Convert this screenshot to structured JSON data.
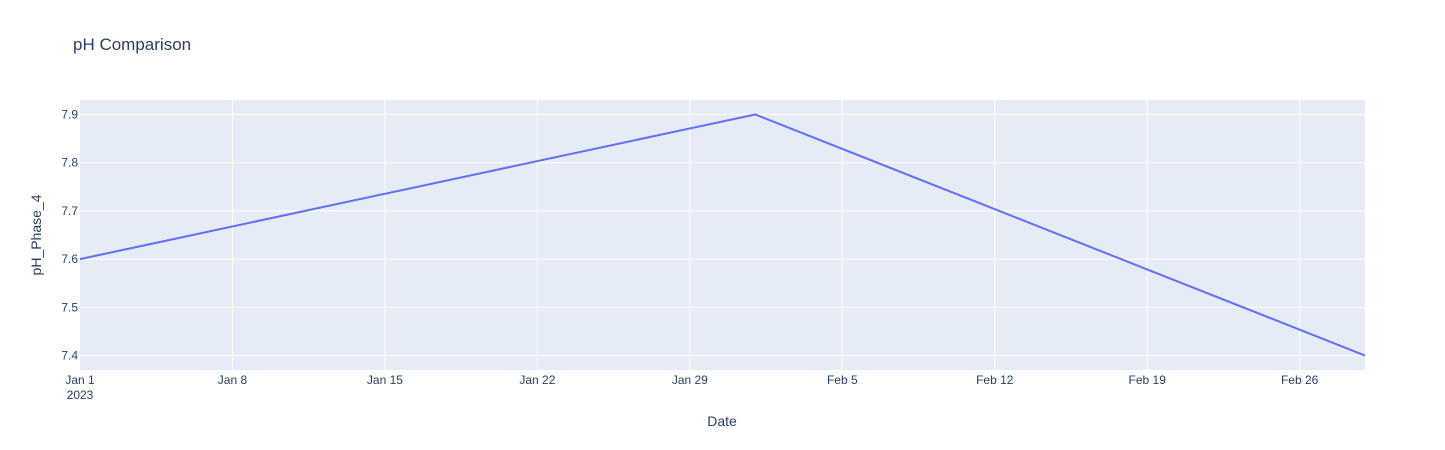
{
  "chart_data": {
    "type": "line",
    "title": "pH Comparison",
    "xlabel": "Date",
    "ylabel": "pH_Phase_4",
    "x_ticks": [
      "Jan 1",
      "Jan 8",
      "Jan 15",
      "Jan 22",
      "Jan 29",
      "Feb 5",
      "Feb 12",
      "Feb 19",
      "Feb 26"
    ],
    "x_tick_dates": [
      "2023-01-01",
      "2023-01-08",
      "2023-01-15",
      "2023-01-22",
      "2023-01-29",
      "2023-02-05",
      "2023-02-12",
      "2023-02-19",
      "2023-02-26"
    ],
    "x_year_label": "2023",
    "xlim": [
      "2023-01-01",
      "2023-03-01"
    ],
    "y_ticks": [
      "7.4",
      "7.5",
      "7.6",
      "7.7",
      "7.8",
      "7.9"
    ],
    "y_tick_values": [
      7.4,
      7.5,
      7.6,
      7.7,
      7.8,
      7.9
    ],
    "ylim": [
      7.37,
      7.93
    ],
    "grid": true,
    "series": [
      {
        "color": "#636efa",
        "x": [
          "2023-01-01",
          "2023-02-01",
          "2023-03-01"
        ],
        "values": [
          7.6,
          7.9,
          7.4
        ]
      }
    ],
    "colors": {
      "plot_background": "#e5ecf6",
      "grid": "#ffffff",
      "text": "#2a3f5f"
    }
  }
}
